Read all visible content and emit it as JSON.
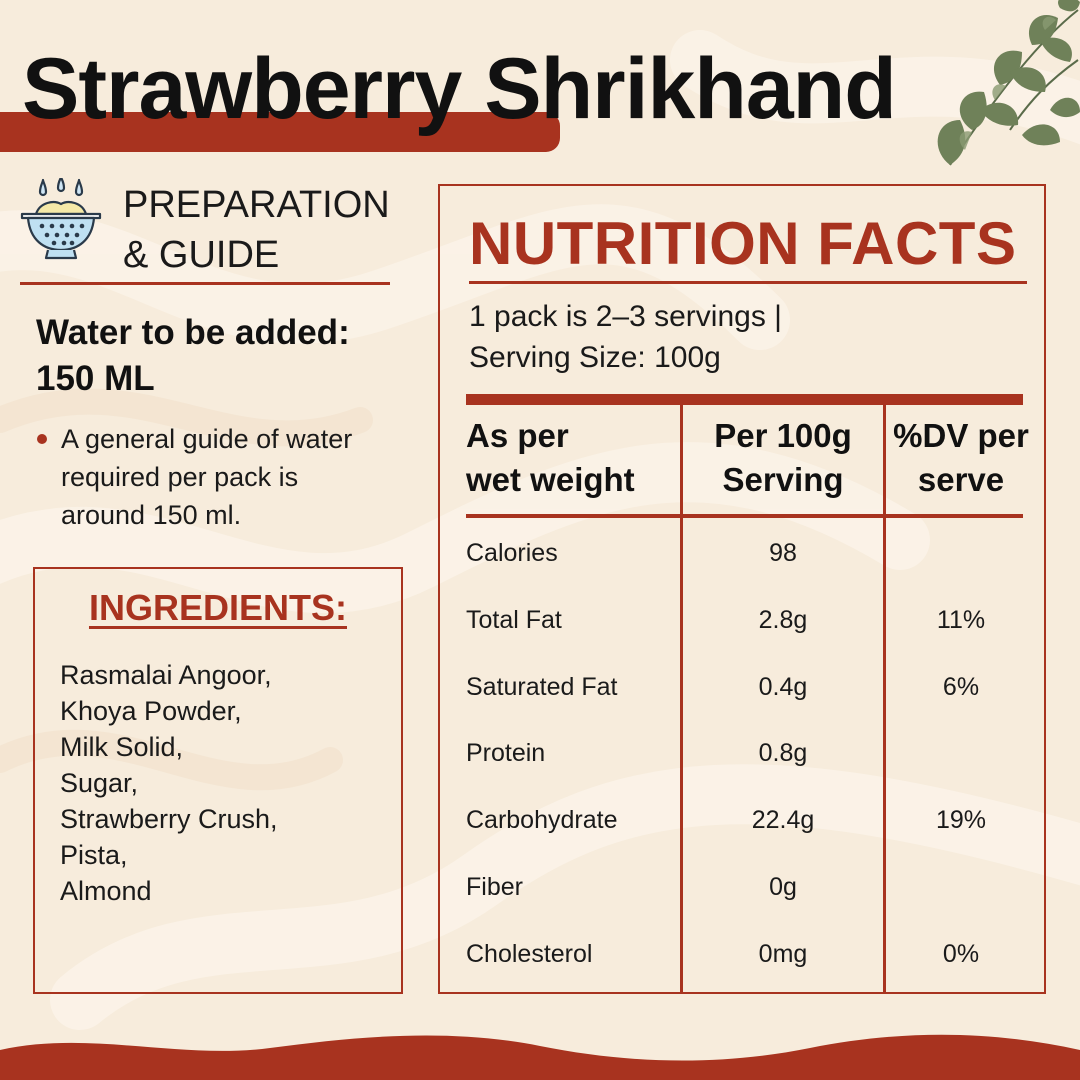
{
  "title": "Strawberry Shrikhand",
  "colors": {
    "accent": "#a8331f",
    "background": "#f7ecdc",
    "text": "#111111"
  },
  "preparation": {
    "icon": "colander-bowl-icon",
    "heading_line1": "PREPARATION",
    "heading_line2": "& GUIDE",
    "water_line1": "Water to be added:",
    "water_line2": "150 ML",
    "guide_text_line1": "A general guide of water",
    "guide_text_line2": "required per pack is",
    "guide_text_line3": "around 150 ml."
  },
  "ingredients": {
    "title": "INGREDIENTS:",
    "items": [
      "Rasmalai Angoor,",
      "Khoya Powder,",
      "Milk Solid,",
      "Sugar,",
      "Strawberry Crush,",
      "Pista,",
      "Almond"
    ]
  },
  "nutrition": {
    "title": "NUTRITION FACTS",
    "serving_line1": "1 pack is 2–3 servings |",
    "serving_line2": "Serving Size: 100g",
    "headers": {
      "col1_line1": "As per",
      "col1_line2": "wet weight",
      "col2_line1": "Per 100g",
      "col2_line2": "Serving",
      "col3_line1": "%DV per",
      "col3_line2": "serve"
    },
    "rows": [
      {
        "name": "Calories",
        "per100g": "98",
        "dv": ""
      },
      {
        "name": "Total Fat",
        "per100g": "2.8g",
        "dv": "11%"
      },
      {
        "name": "Saturated Fat",
        "per100g": "0.4g",
        "dv": "6%"
      },
      {
        "name": "Protein",
        "per100g": "0.8g",
        "dv": ""
      },
      {
        "name": "Carbohydrate",
        "per100g": "22.4g",
        "dv": "19%"
      },
      {
        "name": "Fiber",
        "per100g": "0g",
        "dv": ""
      },
      {
        "name": "Cholesterol",
        "per100g": "0mg",
        "dv": "0%"
      }
    ]
  }
}
